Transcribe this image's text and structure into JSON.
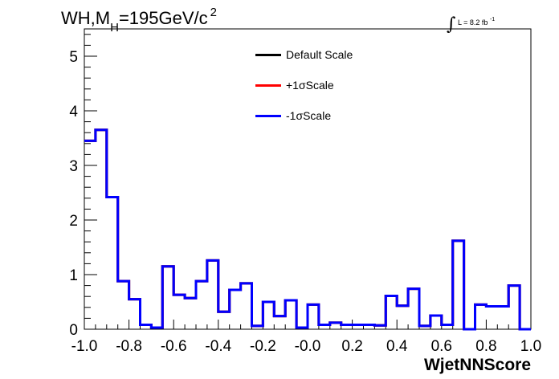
{
  "title": {
    "main": "WH,M",
    "sub": "H",
    "rest": "=195GeV/c",
    "sup": "2"
  },
  "lumi": {
    "integral": "∫",
    "text": "L = 8.2 fb",
    "sup": "-1"
  },
  "chart_data": {
    "type": "line",
    "style": "step-histogram",
    "xlabel": "WjetNNScore",
    "ylabel": "",
    "xlim": [
      -1.0,
      1.0
    ],
    "ylim": [
      0,
      5.5
    ],
    "x_ticks": [
      -1.0,
      -0.8,
      -0.6,
      -0.4,
      -0.2,
      0.0,
      0.2,
      0.4,
      0.6,
      0.8,
      1.0
    ],
    "x_tick_labels": [
      "-1.0",
      "-0.8",
      "-0.6",
      "-0.4",
      "-0.2",
      "-0.0",
      "0.2",
      "0.4",
      "0.6",
      "0.8",
      "1.0"
    ],
    "y_ticks": [
      0,
      1,
      2,
      3,
      4,
      5
    ],
    "y_tick_labels": [
      "0",
      "1",
      "2",
      "3",
      "4",
      "5"
    ],
    "grid": false,
    "legend_position": "top-center",
    "bin_edges": [
      -1.0,
      -0.95,
      -0.9,
      -0.85,
      -0.8,
      -0.75,
      -0.7,
      -0.65,
      -0.6,
      -0.55,
      -0.5,
      -0.45,
      -0.4,
      -0.35,
      -0.3,
      -0.25,
      -0.2,
      -0.15,
      -0.1,
      -0.05,
      0.0,
      0.05,
      0.1,
      0.15,
      0.2,
      0.25,
      0.3,
      0.35,
      0.4,
      0.45,
      0.5,
      0.55,
      0.6,
      0.65,
      0.7,
      0.75,
      0.8,
      0.85,
      0.9,
      0.95,
      1.0
    ],
    "series": [
      {
        "name": "Default Scale",
        "color": "#000000",
        "values": [
          3.45,
          3.65,
          2.42,
          0.88,
          0.55,
          0.08,
          0.03,
          1.15,
          0.63,
          0.57,
          0.88,
          1.26,
          0.32,
          0.72,
          0.84,
          0.06,
          0.5,
          0.24,
          0.53,
          0.03,
          0.45,
          0.08,
          0.12,
          0.08,
          0.08,
          0.08,
          0.07,
          0.61,
          0.43,
          0.74,
          0.06,
          0.25,
          0.08,
          1.62,
          0.0,
          0.45,
          0.42,
          0.42,
          0.8,
          0.0
        ]
      },
      {
        "name": "+1σScale",
        "color": "#ff0000",
        "values": [
          3.45,
          3.65,
          2.42,
          0.88,
          0.55,
          0.08,
          0.03,
          1.15,
          0.63,
          0.57,
          0.88,
          1.26,
          0.32,
          0.72,
          0.84,
          0.06,
          0.5,
          0.24,
          0.53,
          0.03,
          0.45,
          0.08,
          0.12,
          0.08,
          0.08,
          0.08,
          0.07,
          0.61,
          0.43,
          0.74,
          0.06,
          0.25,
          0.08,
          1.62,
          0.0,
          0.45,
          0.42,
          0.42,
          0.8,
          0.0
        ]
      },
      {
        "name": "-1σScale",
        "color": "#0000ff",
        "values": [
          3.45,
          3.65,
          2.42,
          0.88,
          0.55,
          0.08,
          0.03,
          1.15,
          0.63,
          0.57,
          0.88,
          1.26,
          0.32,
          0.72,
          0.84,
          0.06,
          0.5,
          0.24,
          0.53,
          0.03,
          0.45,
          0.08,
          0.12,
          0.08,
          0.08,
          0.08,
          0.07,
          0.61,
          0.43,
          0.74,
          0.06,
          0.25,
          0.08,
          1.62,
          0.0,
          0.45,
          0.42,
          0.42,
          0.8,
          0.0
        ]
      }
    ]
  }
}
